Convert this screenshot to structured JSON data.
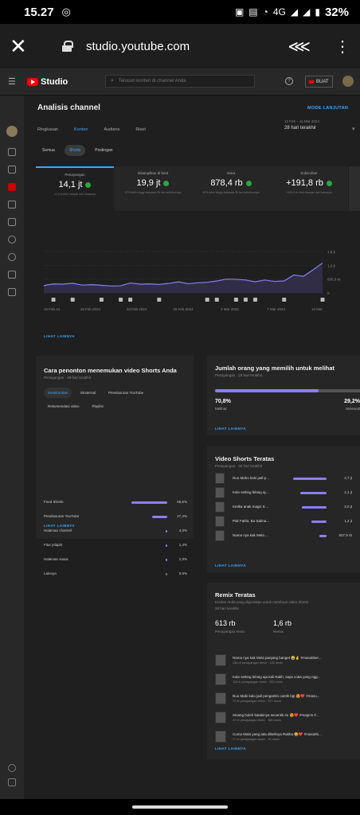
{
  "statusbar": {
    "time": "15.27",
    "network": "4G",
    "battery": "32%"
  },
  "browser": {
    "url": "studio.youtube.com"
  },
  "header": {
    "logo_text": "Studio",
    "search_placeholder": "Telusuri konten di channel Anda",
    "create_label": "BUAT"
  },
  "page": {
    "title": "Analisis channel",
    "mode_link": "MODE LANJUTAN",
    "date_small": "12 Feb – 11 Mar 2024",
    "date_range": "28 hari terakhir",
    "tabs": [
      "Ringkasan",
      "Konten",
      "Audiens",
      "Riset"
    ],
    "chips": [
      "Semua",
      "Shorts",
      "Postingan"
    ]
  },
  "metrics": [
    {
      "label": "Penayangan",
      "value": "14,1 jt",
      "note": "14,6 jt lebih banyak dari biasanya"
    },
    {
      "label": "Ditampilkan di feed",
      "value": "19,9 jt",
      "note": "97% lebih tinggi daripada 28 hari sebelumnya"
    },
    {
      "label": "Suka",
      "value": "878,4 rb",
      "note": "87% lebih tinggi daripada 28 hari sebelumnya"
    },
    {
      "label": "Subscriber",
      "value": "+191,8 rb",
      "note": "+190,5 rb lebih banyak dari biasanya"
    }
  ],
  "chart_data": {
    "type": "area",
    "x_labels": [
      "15 Feb 24",
      "19 Feb 2024",
      "23 Feb 2024",
      "28 Feb 2024",
      "4 Mar 2024",
      "7 Mar 2024",
      "10 Mar"
    ],
    "y_ticks": [
      "1,8 jt",
      "1,2 jt",
      "600,0 rb",
      "0"
    ],
    "ylim": [
      0,
      1800000
    ],
    "values": [
      320000,
      390000,
      380000,
      420000,
      340000,
      360000,
      330000,
      300000,
      310000,
      430000,
      380000,
      390000,
      370000,
      410000,
      480000,
      400000,
      440000,
      460000,
      520000,
      600000,
      590000,
      560000,
      480000,
      560000,
      500000,
      520000,
      780000,
      720000,
      1000000,
      1300000
    ],
    "grid": true
  },
  "more_label": "LIHAT LAINNYA",
  "sources": {
    "title": "Cara penonton menemukan video Shorts Anda",
    "sub": "Penayangan · 28 hari terakhir",
    "chips": [
      "Keseluruhan",
      "Eksternal",
      "Penelusuran YouTube",
      "Rekomendasi video",
      "Playlist"
    ],
    "rows": [
      {
        "label": "Feed Shorts",
        "value": "65,5%",
        "pct": 65.5
      },
      {
        "label": "Penelusuran YouTube",
        "value": "27,4%",
        "pct": 27.4
      },
      {
        "label": "Halaman channel",
        "value": "4,0%",
        "pct": 4.0
      },
      {
        "label": "Fitur jelajah",
        "value": "1,4%",
        "pct": 1.4
      },
      {
        "label": "Halaman suara",
        "value": "1,0%",
        "pct": 1.0
      },
      {
        "label": "Lainnya",
        "value": "0,6%",
        "pct": 0.6
      }
    ]
  },
  "choose": {
    "title": "Jumlah orang yang memilih untuk melihat",
    "sub": "Penayangan · 28 hari terakhir",
    "watched_pct": "70,8%",
    "watched_label": "Melihat",
    "skipped_pct": "29,2%",
    "skipped_label": "Melewati",
    "fraction": 0.708
  },
  "top_shorts": {
    "title": "Video Shorts Teratas",
    "sub": "Penayangan · 28 hari terakhir",
    "items": [
      {
        "title": "Duo Maho kalo jadi p...",
        "value": "2,7 jt",
        "views": 2.7
      },
      {
        "title": "Kalo setting bilang aj...",
        "value": "2,1 jt",
        "views": 2.1
      },
      {
        "title": "Ketika anak magic 5 ...",
        "value": "2,0 jt",
        "views": 2.0
      },
      {
        "title": "Pak Fathir, Bu Salma...",
        "value": "1,2 jt",
        "views": 1.2
      },
      {
        "title": "Nama nya kak Mela ...",
        "value": "607,9 rb",
        "views": 0.6079
      }
    ]
  },
  "remix": {
    "title": "Remix Teratas",
    "sub": "Konten Anda yang digunakan untuk membuat video Shorts",
    "period": "28 hari terakhir",
    "stat1_value": "613 rb",
    "stat1_label": "Penayangan remix",
    "stat2_value": "1,6 rb",
    "stat2_label": "Remix",
    "items": [
      {
        "title": "Nama nya kak Mela panjang banget 😭🤞 #masukber...",
        "sub": "238 rb penayangan remix · 153 remix"
      },
      {
        "title": "Kalo setting bilang aja kali Rakh, saya coba yang ngg...",
        "sub": "116 rb penayangan remix · 253 remix"
      },
      {
        "title": "Duo Mahi kalo jadi pengantin cantik bgt 😍❤️ #masu...",
        "sub": "77 rb penayangan remix · 377 remix"
      },
      {
        "title": "Sinang boleh katakinya secantik itu 😍❤️ #magic5 #...",
        "sub": "47 rb penayangan remix · 155 remix"
      },
      {
        "title": "Cuma Mala yang ada dibelinya Rakha 😂❤️ #masukb...",
        "sub": "27 rb penayangan remix · 10 remix"
      }
    ]
  }
}
